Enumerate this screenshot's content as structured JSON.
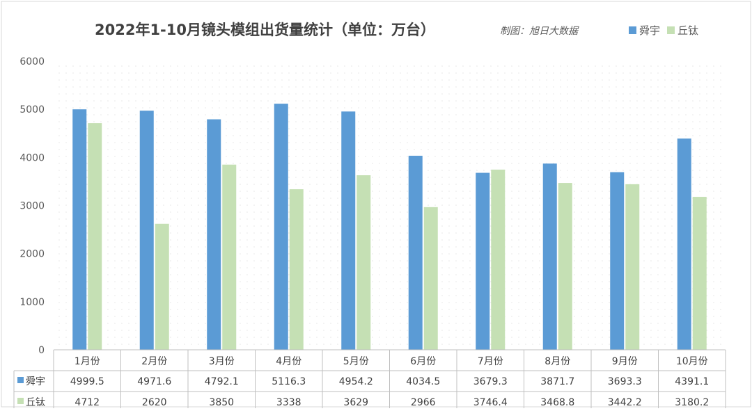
{
  "chart_data": {
    "type": "bar",
    "title": "2022年1-10月镜头模组出货量统计（单位：万台）",
    "subtitle": "制图：旭日大数据",
    "categories": [
      "1月份",
      "2月份",
      "3月份",
      "4月份",
      "5月份",
      "6月份",
      "7月份",
      "8月份",
      "9月份",
      "10月份"
    ],
    "series": [
      {
        "name": "舜宇",
        "color": "#5b9bd5",
        "values": [
          4999.5,
          4971.6,
          4792.1,
          5116.3,
          4954.2,
          4034.5,
          3679.3,
          3871.7,
          3693.3,
          4391.1
        ]
      },
      {
        "name": "丘钛",
        "color": "#c5e0b4",
        "values": [
          4712,
          2620,
          3850,
          3338,
          3629,
          2966,
          3746.4,
          3468.8,
          3442.2,
          3180.2
        ]
      }
    ],
    "yticks": [
      0,
      1000,
      2000,
      3000,
      4000,
      5000,
      6000
    ],
    "ylim": [
      0,
      6000
    ],
    "legend": "top-right",
    "data_table": true,
    "grid": "dotted background"
  }
}
